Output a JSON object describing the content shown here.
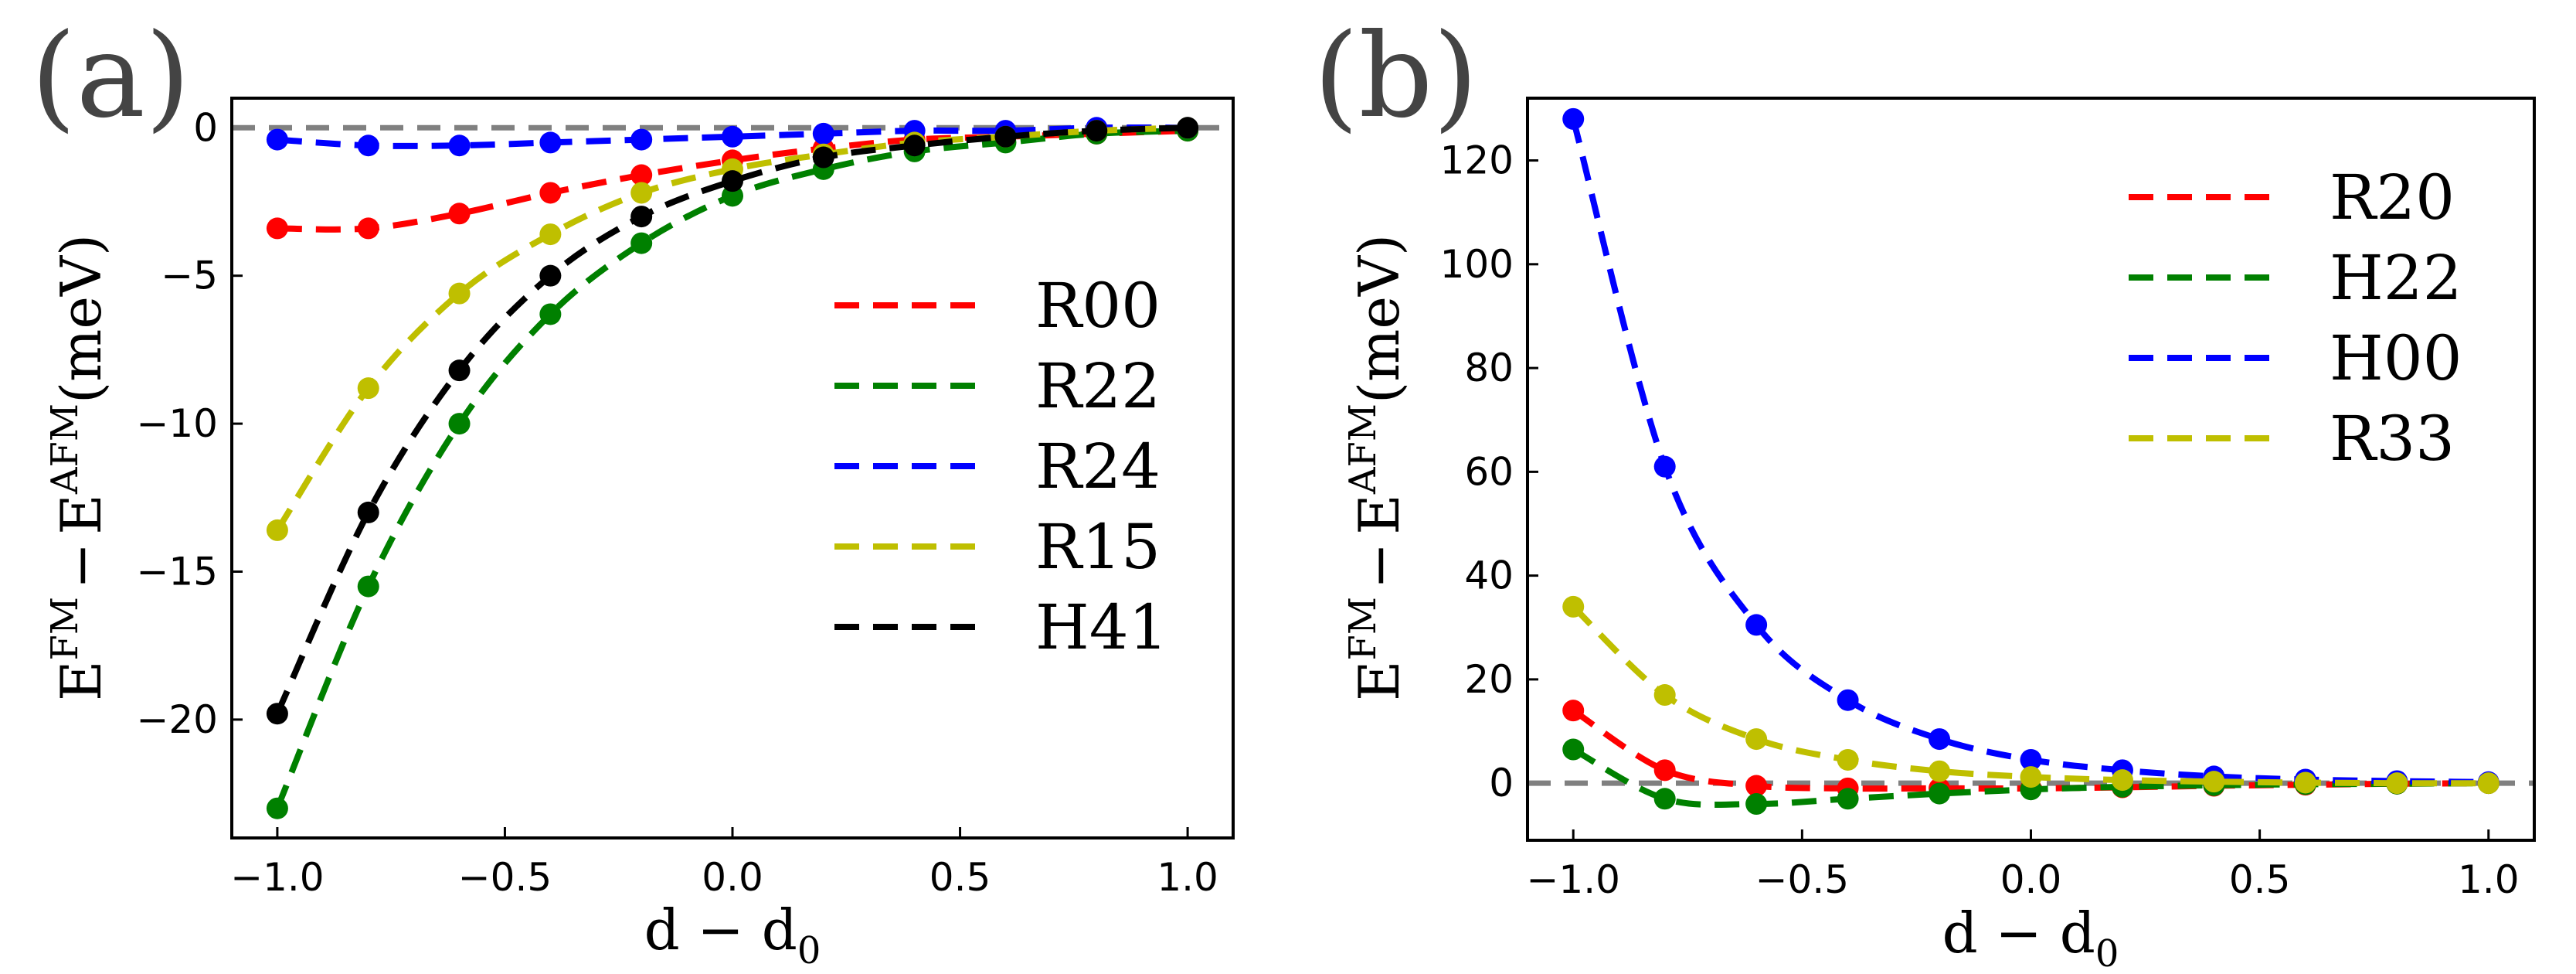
{
  "chart_data": [
    {
      "type": "line",
      "panel_label": "(a)",
      "xlabel": "d − d",
      "xlabel_sub": "0",
      "ylabel": {
        "E1": "E",
        "sup1": "FM",
        "minus": "−",
        "E2": "E",
        "sup2": "AFM",
        "unit": "(meV)"
      },
      "xlim": [
        -1.1,
        1.1
      ],
      "ylim": [
        -24.0,
        1.0
      ],
      "xticks": [
        -1.0,
        -0.5,
        0.0,
        0.5,
        1.0
      ],
      "xtick_labels": [
        "−1.0",
        "−0.5",
        "0.0",
        "0.5",
        "1.0"
      ],
      "yticks": [
        0,
        -5,
        -10,
        -15,
        -20
      ],
      "ytick_labels": [
        "0",
        "−5",
        "−10",
        "−15",
        "−20"
      ],
      "reference_line_y": 0,
      "legend_position": "right",
      "x": [
        -1.0,
        -0.8,
        -0.6,
        -0.4,
        -0.2,
        0.0,
        0.2,
        0.4,
        0.6,
        0.8,
        1.0
      ],
      "series": [
        {
          "name": "R00",
          "color": "#ff0000",
          "values": [
            -3.4,
            -3.4,
            -2.9,
            -2.2,
            -1.6,
            -1.1,
            -0.7,
            -0.4,
            -0.3,
            -0.2,
            -0.1
          ]
        },
        {
          "name": "R22",
          "color": "#008000",
          "values": [
            -23.0,
            -15.5,
            -10.0,
            -6.3,
            -3.9,
            -2.3,
            -1.4,
            -0.8,
            -0.5,
            -0.2,
            -0.1
          ]
        },
        {
          "name": "R24",
          "color": "#0000ff",
          "values": [
            -0.4,
            -0.6,
            -0.6,
            -0.5,
            -0.4,
            -0.3,
            -0.2,
            -0.1,
            -0.1,
            0.0,
            0.0
          ]
        },
        {
          "name": "R15",
          "color": "#bfbf00",
          "values": [
            -13.6,
            -8.8,
            -5.6,
            -3.6,
            -2.2,
            -1.4,
            -0.9,
            -0.5,
            -0.3,
            -0.1,
            0.0
          ]
        },
        {
          "name": "H41",
          "color": "#000000",
          "values": [
            -19.8,
            -13.0,
            -8.2,
            -5.0,
            -3.0,
            -1.8,
            -1.0,
            -0.6,
            -0.3,
            -0.1,
            0.0
          ]
        }
      ]
    },
    {
      "type": "line",
      "panel_label": "(b)",
      "xlabel": "d − d",
      "xlabel_sub": "0",
      "ylabel": {
        "E1": "E",
        "sup1": "FM",
        "minus": "−",
        "E2": "E",
        "sup2": "AFM",
        "unit": "(meV)"
      },
      "xlim": [
        -1.1,
        1.1
      ],
      "ylim": [
        -11.0,
        132.0
      ],
      "xticks": [
        -1.0,
        -0.5,
        0.0,
        0.5,
        1.0
      ],
      "xtick_labels": [
        "−1.0",
        "−0.5",
        "0.0",
        "0.5",
        "1.0"
      ],
      "yticks": [
        0,
        20,
        40,
        60,
        80,
        100,
        120
      ],
      "ytick_labels": [
        "0",
        "20",
        "40",
        "60",
        "80",
        "100",
        "120"
      ],
      "reference_line_y": 0,
      "legend_position": "top-right",
      "x": [
        -1.0,
        -0.8,
        -0.6,
        -0.4,
        -0.2,
        0.0,
        0.2,
        0.4,
        0.6,
        0.8,
        1.0
      ],
      "series": [
        {
          "name": "R20",
          "color": "#ff0000",
          "values": [
            14.0,
            2.5,
            -0.5,
            -1.0,
            -1.0,
            -1.0,
            -0.8,
            -0.5,
            -0.3,
            -0.1,
            0.0
          ]
        },
        {
          "name": "H22",
          "color": "#008000",
          "values": [
            6.5,
            -3.0,
            -4.0,
            -3.0,
            -2.0,
            -1.2,
            -0.7,
            -0.4,
            -0.2,
            -0.1,
            0.0
          ]
        },
        {
          "name": "H00",
          "color": "#0000ff",
          "values": [
            128.0,
            61.0,
            30.5,
            16.0,
            8.5,
            4.5,
            2.5,
            1.3,
            0.7,
            0.4,
            0.2
          ]
        },
        {
          "name": "R33",
          "color": "#bfbf00",
          "values": [
            34.0,
            17.0,
            8.5,
            4.5,
            2.3,
            1.2,
            0.6,
            0.3,
            0.1,
            0.0,
            0.0
          ]
        }
      ]
    }
  ]
}
